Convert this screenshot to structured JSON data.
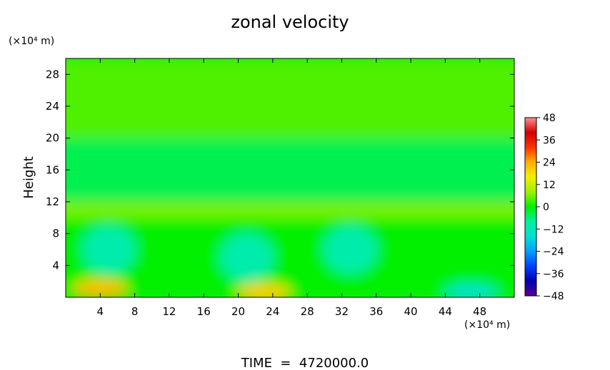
{
  "chart_data": {
    "type": "heatmap",
    "title": "zonal velocity",
    "ylabel": "Height",
    "x_unit": "(×10⁴ m)",
    "y_unit": "(×10⁴ m)",
    "footer": "TIME  =  4720000.0",
    "xlim": [
      0,
      52
    ],
    "ylim": [
      0,
      30
    ],
    "x_ticks": [
      4,
      8,
      12,
      16,
      20,
      24,
      28,
      32,
      36,
      40,
      44,
      48
    ],
    "y_ticks": [
      4,
      8,
      12,
      16,
      20,
      24,
      28
    ],
    "colorbar": {
      "ticks": [
        48,
        36,
        24,
        12,
        0,
        -12,
        -24,
        -36,
        -48
      ],
      "tick_labels": [
        "48",
        "36",
        "24",
        "12",
        "0",
        "−12",
        "−24",
        "−36",
        "−48"
      ],
      "range": [
        -48,
        48
      ],
      "colors": [
        "#5a0090",
        "#0000b0",
        "#0040ff",
        "#00a0ff",
        "#00e0d0",
        "#00f0a0",
        "#00f000",
        "#a0f000",
        "#f0f000",
        "#ffb000",
        "#ff3000",
        "#d00000",
        "#ff9090"
      ]
    },
    "field_summary": {
      "layers": [
        {
          "height_range": [
            20,
            30
          ],
          "u_approx": 4
        },
        {
          "height_range": [
            12,
            20
          ],
          "u_approx": -4
        },
        {
          "height_range": [
            10,
            12
          ],
          "u_approx": 6
        },
        {
          "height_range": [
            0,
            10
          ],
          "u_approx": 0
        }
      ],
      "maxima_near_surface": [
        {
          "x": 4,
          "y": 1,
          "u": 22
        },
        {
          "x": 23,
          "y": 0.5,
          "u": 20
        }
      ],
      "minima": [
        {
          "x": 5,
          "y": 6,
          "u": -10
        },
        {
          "x": 21,
          "y": 5,
          "u": -10
        },
        {
          "x": 33,
          "y": 6,
          "u": -10
        },
        {
          "x": 47,
          "y": 0.5,
          "u": -14
        }
      ]
    }
  }
}
